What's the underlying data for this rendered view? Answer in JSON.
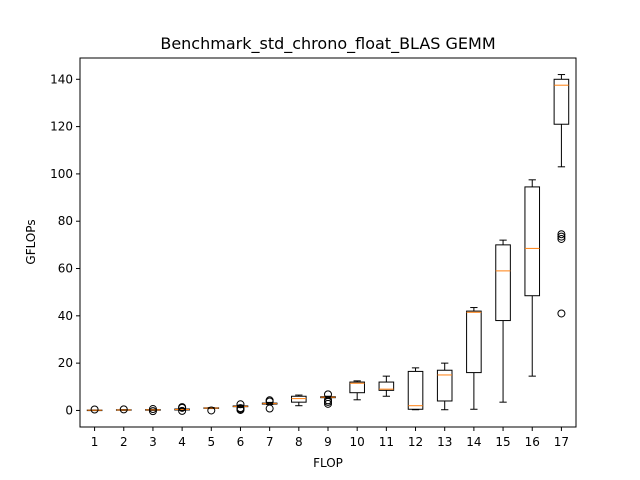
{
  "chart_data": {
    "type": "box",
    "title": "Benchmark_std_chrono_float_BLAS GEMM",
    "xlabel": "FLOP",
    "ylabel": "GFLOPs",
    "ylim": [
      -7,
      149
    ],
    "yticks": [
      0,
      20,
      40,
      60,
      80,
      100,
      120,
      140
    ],
    "grid": false,
    "colors": {
      "box": "#000000",
      "median": "#ff7f0e",
      "background": "#ffffff"
    },
    "boxes": [
      {
        "label": "1",
        "whislo": 0,
        "q1": 0,
        "med": 0.1,
        "q3": 0.15,
        "whishi": 0.2,
        "fliers": [
          0.4
        ]
      },
      {
        "label": "2",
        "whislo": 0.05,
        "q1": 0.1,
        "med": 0.2,
        "q3": 0.3,
        "whishi": 0.35,
        "fliers": [
          0.45
        ]
      },
      {
        "label": "3",
        "whislo": 0.05,
        "q1": 0.1,
        "med": 0.25,
        "q3": 0.35,
        "whishi": 0.45,
        "fliers": [
          -0.3,
          0.6
        ]
      },
      {
        "label": "4",
        "whislo": 0.1,
        "q1": 0.2,
        "med": 0.4,
        "q3": 0.6,
        "whishi": 0.8,
        "fliers": [
          -0.2,
          1.1,
          1.4
        ]
      },
      {
        "label": "5",
        "whislo": 0.8,
        "q1": 0.9,
        "med": 1.0,
        "q3": 1.1,
        "whishi": 1.2,
        "fliers": [
          0.0
        ]
      },
      {
        "label": "6",
        "whislo": 1.5,
        "q1": 1.6,
        "med": 1.7,
        "q3": 1.9,
        "whishi": 2.2,
        "fliers": [
          0.2,
          0.6,
          1.0,
          2.6
        ]
      },
      {
        "label": "7",
        "whislo": 2.5,
        "q1": 2.7,
        "med": 2.9,
        "q3": 3.1,
        "whishi": 3.4,
        "fliers": [
          0.8,
          3.8,
          4.3
        ]
      },
      {
        "label": "8",
        "whislo": 2.0,
        "q1": 3.5,
        "med": 5.0,
        "q3": 6.0,
        "whishi": 6.5,
        "fliers": []
      },
      {
        "label": "9",
        "whislo": 5.2,
        "q1": 5.4,
        "med": 5.6,
        "q3": 5.8,
        "whishi": 6.0,
        "fliers": [
          2.8,
          3.6,
          4.3,
          6.8
        ]
      },
      {
        "label": "10",
        "whislo": 4.5,
        "q1": 7.5,
        "med": 11.5,
        "q3": 12.0,
        "whishi": 12.5,
        "fliers": []
      },
      {
        "label": "11",
        "whislo": 6.0,
        "q1": 8.5,
        "med": 9.0,
        "q3": 12.0,
        "whishi": 14.5,
        "fliers": []
      },
      {
        "label": "12",
        "whislo": 0.3,
        "q1": 0.5,
        "med": 2.0,
        "q3": 16.5,
        "whishi": 18.0,
        "fliers": []
      },
      {
        "label": "13",
        "whislo": 0.3,
        "q1": 4.0,
        "med": 15.0,
        "q3": 17.0,
        "whishi": 20.0,
        "fliers": []
      },
      {
        "label": "14",
        "whislo": 0.5,
        "q1": 16.0,
        "med": 41.5,
        "q3": 42.0,
        "whishi": 43.5,
        "fliers": []
      },
      {
        "label": "15",
        "whislo": 3.5,
        "q1": 38.0,
        "med": 59.0,
        "q3": 70.0,
        "whishi": 72.0,
        "fliers": []
      },
      {
        "label": "16",
        "whislo": 14.5,
        "q1": 48.5,
        "med": 68.5,
        "q3": 94.5,
        "whishi": 97.5,
        "fliers": []
      },
      {
        "label": "17",
        "whislo": 103.0,
        "q1": 121.0,
        "med": 137.5,
        "q3": 140.0,
        "whishi": 142.0,
        "fliers": [
          41.0,
          72.5,
          73.5,
          74.5
        ]
      }
    ]
  }
}
